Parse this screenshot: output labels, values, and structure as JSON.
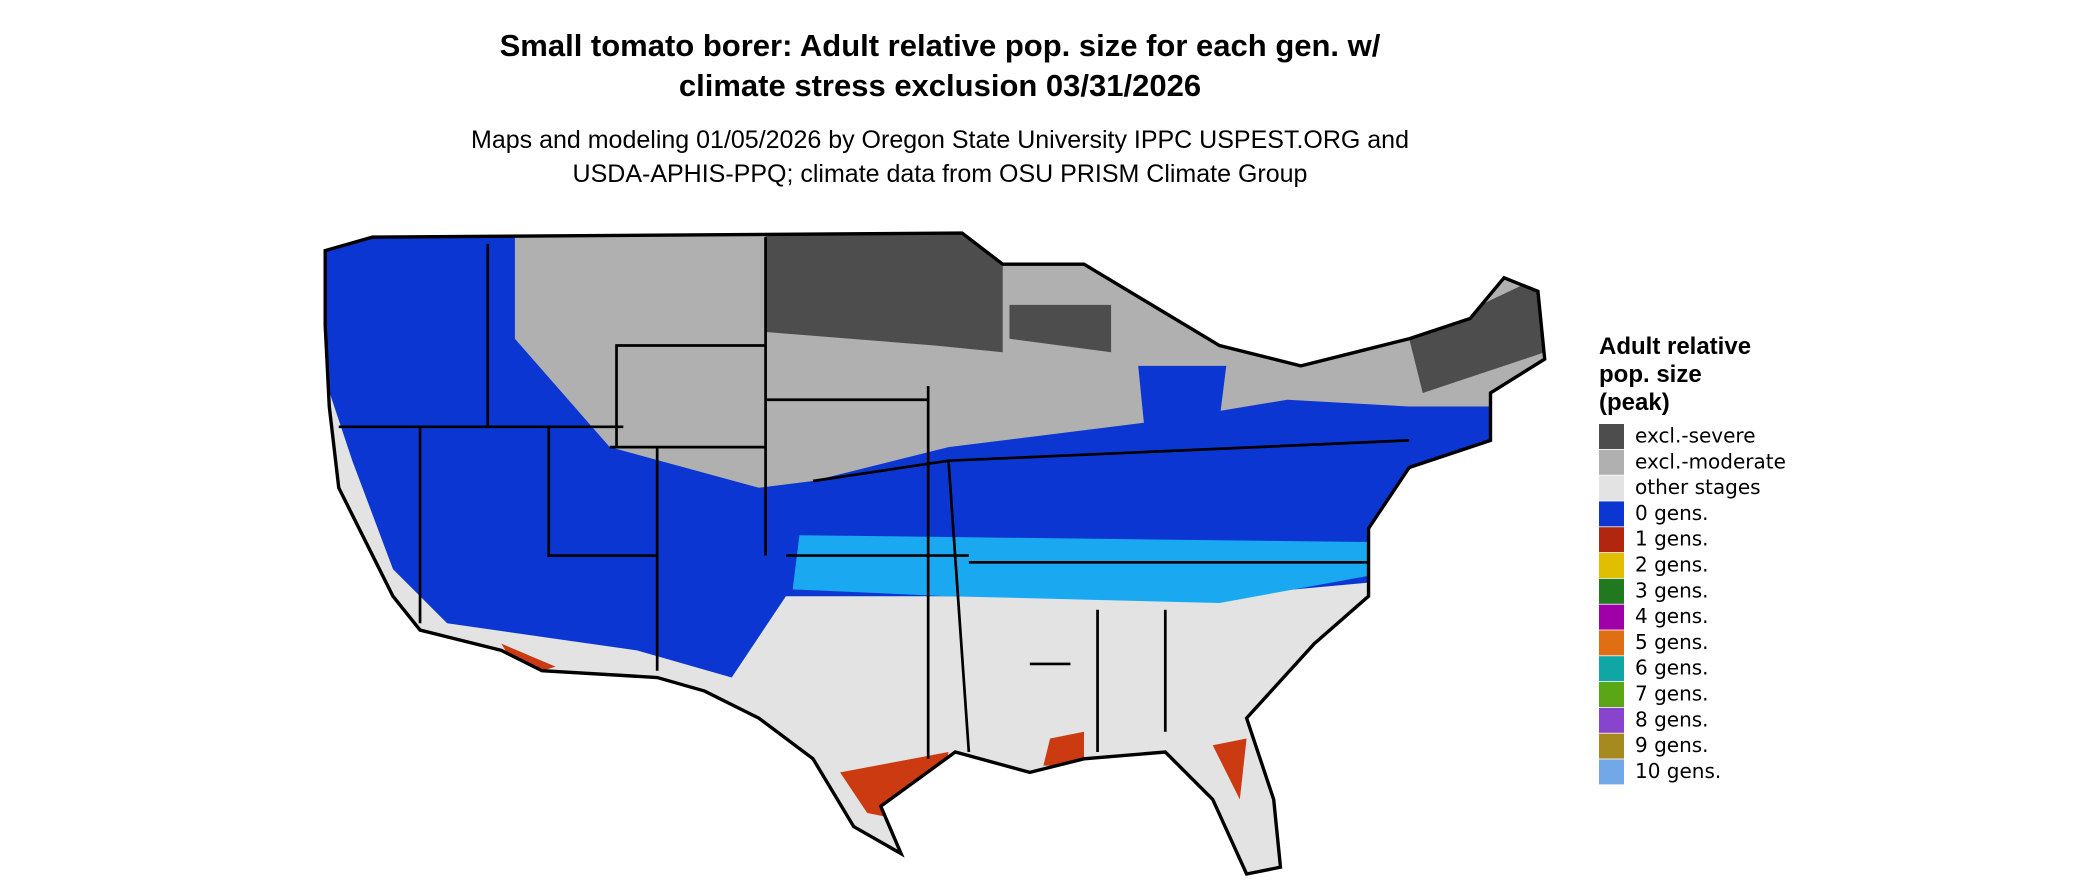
{
  "header": {
    "title": [
      "Small tomato borer: Adult relative pop. size for each gen. w/",
      "climate stress exclusion 03/31/2026"
    ],
    "subtitle": [
      "Maps and modeling 01/05/2026 by Oregon State University IPPC USPEST.ORG and",
      "USDA-APHIS-PPQ; climate data from OSU PRISM Climate Group"
    ]
  },
  "legend": {
    "title": [
      "Adult relative",
      "pop. size",
      "(peak)"
    ],
    "items": [
      {
        "label": "excl.-severe",
        "color": "#4d4d4d"
      },
      {
        "label": "excl.-moderate",
        "color": "#b0b0b0"
      },
      {
        "label": "other stages",
        "color": "#e3e3e3"
      },
      {
        "label": "0 gens.",
        "color": "#0c36d2"
      },
      {
        "label": "1 gens.",
        "color": "#b0260e"
      },
      {
        "label": "2 gens.",
        "color": "#e0bf00"
      },
      {
        "label": "3 gens.",
        "color": "#20781f"
      },
      {
        "label": "4 gens.",
        "color": "#a000a8"
      },
      {
        "label": "5 gens.",
        "color": "#e06e12"
      },
      {
        "label": "6 gens.",
        "color": "#10a6a6"
      },
      {
        "label": "7 gens.",
        "color": "#5aa616"
      },
      {
        "label": "8 gens.",
        "color": "#8844cc"
      },
      {
        "label": "9 gens.",
        "color": "#a68a20"
      },
      {
        "label": "10 gens.",
        "color": "#72a8e8"
      }
    ]
  }
}
